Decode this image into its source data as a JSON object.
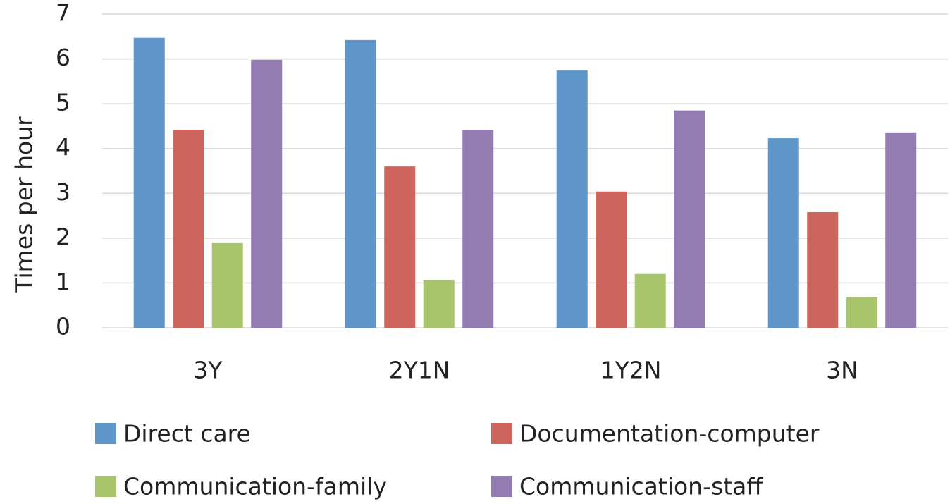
{
  "chart_data": {
    "type": "bar",
    "y_label": "Times per hour",
    "categories": [
      "3Y",
      "2Y1N",
      "1Y2N",
      "3N"
    ],
    "series": [
      {
        "name": "Direct care",
        "color": "#5f96ca",
        "values": [
          6.47,
          6.42,
          5.74,
          4.23
        ]
      },
      {
        "name": "Documentation-computer",
        "color": "#cd655e",
        "values": [
          4.42,
          3.6,
          3.04,
          2.58
        ]
      },
      {
        "name": "Communication-family",
        "color": "#a8c56c",
        "values": [
          1.89,
          1.07,
          1.2,
          0.68
        ]
      },
      {
        "name": "Communication-staff",
        "color": "#927cb2",
        "values": [
          5.98,
          4.42,
          4.85,
          4.36
        ]
      }
    ],
    "ylim": [
      0,
      7
    ],
    "yticks": [
      0,
      1,
      2,
      3,
      4,
      5,
      6,
      7
    ],
    "grid": true
  }
}
